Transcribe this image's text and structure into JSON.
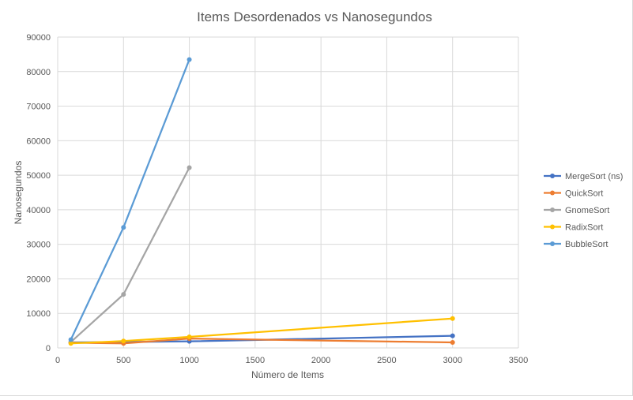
{
  "chart_data": {
    "type": "line",
    "title": "Items Desordenados vs Nanosegundos",
    "xlabel": "Número de Items",
    "ylabel": "Nanosegundos",
    "xlim": [
      0,
      3500
    ],
    "ylim": [
      0,
      90000
    ],
    "xticks": [
      0,
      500,
      1000,
      1500,
      2000,
      2500,
      3000,
      3500
    ],
    "yticks": [
      0,
      10000,
      20000,
      30000,
      40000,
      50000,
      60000,
      70000,
      80000,
      90000
    ],
    "grid": true,
    "legend_position": "right",
    "series": [
      {
        "name": "MergeSort (ns)",
        "color": "#4472c4",
        "x": [
          100,
          500,
          1000,
          3000
        ],
        "y": [
          1600,
          1700,
          1900,
          3500
        ]
      },
      {
        "name": "QuickSort",
        "color": "#ed7d31",
        "x": [
          100,
          500,
          1000,
          3000
        ],
        "y": [
          1500,
          1300,
          2700,
          1600
        ]
      },
      {
        "name": "GnomeSort",
        "color": "#a5a5a5",
        "x": [
          100,
          500,
          1000
        ],
        "y": [
          1700,
          15500,
          52200
        ]
      },
      {
        "name": "RadixSort",
        "color": "#ffc000",
        "x": [
          100,
          500,
          1000,
          3000
        ],
        "y": [
          1300,
          2000,
          3200,
          8500
        ]
      },
      {
        "name": "BubbleSort",
        "color": "#5b9bd5",
        "x": [
          100,
          500,
          1000
        ],
        "y": [
          2400,
          34900,
          83500
        ]
      }
    ]
  }
}
